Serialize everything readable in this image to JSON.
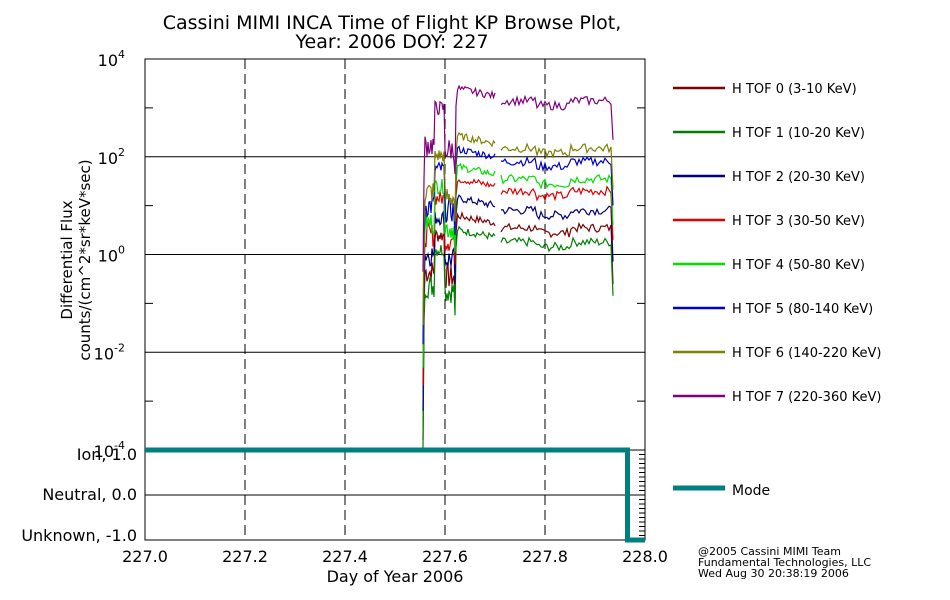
{
  "chart_data": {
    "type": "line",
    "title_line1": "Cassini MIMI INCA Time of Flight KP Browse Plot,",
    "title_line2": "Year: 2006 DOY: 227",
    "xlabel": "Day of Year 2006",
    "ylabel_line1": "Differential Flux",
    "ylabel_line2": "counts/(cm^2*sr*keV*sec)",
    "xlim": [
      227.0,
      228.0
    ],
    "ylim_log10": [
      -4,
      4
    ],
    "x_ticks": [
      "227.0",
      "227.2",
      "227.4",
      "227.6",
      "227.8",
      "228.0"
    ],
    "y_ticks": [
      {
        "base": "10",
        "exp": "4",
        "log": 4
      },
      {
        "base": "10",
        "exp": "2",
        "log": 2
      },
      {
        "base": "10",
        "exp": "0",
        "log": 0
      },
      {
        "base": "10",
        "exp": "-2",
        "log": -2
      },
      {
        "base": "10",
        "exp": "-4",
        "log": -4
      }
    ],
    "series": [
      {
        "name": "H TOF 0 (3-10 KeV)",
        "color": "#7f0000",
        "plateau": 3.5
      },
      {
        "name": "H TOF 1 (10-20 KeV)",
        "color": "#008000",
        "plateau": 1.8
      },
      {
        "name": "H TOF 2 (20-30 KeV)",
        "color": "#00007f",
        "plateau": 8
      },
      {
        "name": "H TOF 3 (30-50 KeV)",
        "color": "#e00000",
        "plateau": 20
      },
      {
        "name": "H TOF 4 (50-80 KeV)",
        "color": "#00e000",
        "plateau": 35
      },
      {
        "name": "H TOF 5 (80-140 KeV)",
        "color": "#0000cc",
        "plateau": 80
      },
      {
        "name": "H TOF 6 (140-220 KeV)",
        "color": "#808000",
        "plateau": 150
      },
      {
        "name": "H TOF 7 (220-360 KeV)",
        "color": "#800080",
        "plateau": 1400
      }
    ],
    "mode_panel": {
      "labels": [
        "Ion, 1.0",
        "Neutral, 0.0",
        "Unknown, -1.0"
      ],
      "legend": "Mode",
      "color": "#007f7f",
      "x": [
        227.0,
        227.965,
        227.965,
        228.0
      ],
      "y": [
        1.0,
        1.0,
        -1.0,
        -1.0
      ]
    }
  },
  "footer": {
    "line1": "@2005 Cassini MIMI Team",
    "line2": "Fundamental Technologies, LLC",
    "line3": "Wed Aug 30 20:38:19 2006"
  }
}
